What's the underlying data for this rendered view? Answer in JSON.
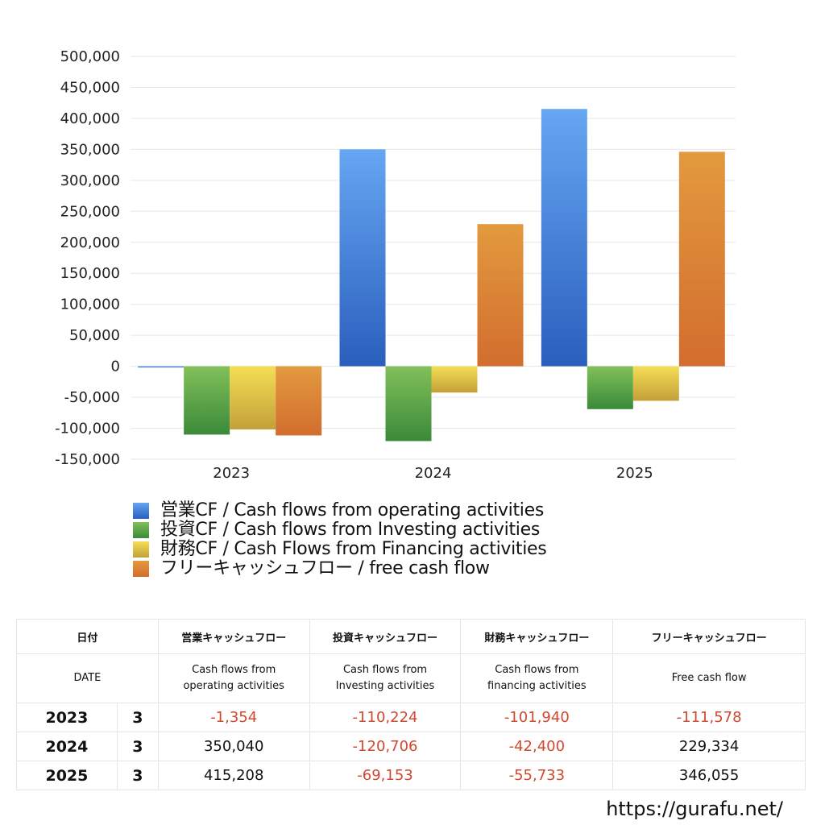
{
  "chart_data": {
    "type": "bar",
    "title": "",
    "xlabel": "",
    "ylabel": "",
    "categories": [
      "2023",
      "2024",
      "2025"
    ],
    "ylim": [
      -150000,
      500000
    ],
    "yticks": [
      500000,
      450000,
      400000,
      350000,
      300000,
      250000,
      200000,
      150000,
      100000,
      50000,
      0,
      -50000,
      -100000,
      -150000
    ],
    "ytick_labels": [
      "500,000",
      "450,000",
      "400,000",
      "350,000",
      "300,000",
      "250,000",
      "200,000",
      "150,000",
      "100,000",
      "50,000",
      "0",
      "-50,000",
      "-100,000",
      "-150,000"
    ],
    "grid": true,
    "legend_position": "bottom",
    "series": [
      {
        "name": "営業CF / Cash flows from operating activities",
        "values": [
          -1354,
          350040,
          415208
        ],
        "color_top": "#66a6f2",
        "color_bottom": "#2a5fbd"
      },
      {
        "name": "投資CF / Cash flows from Investing activities",
        "values": [
          -110224,
          -120706,
          -69153
        ],
        "color_top": "#82c05a",
        "color_bottom": "#3a8a3a"
      },
      {
        "name": "財務CF / Cash Flows from Financing activities",
        "values": [
          -101940,
          -42400,
          -55733
        ],
        "color_top": "#f4de55",
        "color_bottom": "#c3a03a"
      },
      {
        "name": "フリーキャッシュフロー / free cash flow",
        "values": [
          -111578,
          229334,
          346055
        ],
        "color_top": "#e39a3e",
        "color_bottom": "#d26d2e"
      }
    ]
  },
  "table": {
    "header_jp": [
      "日付",
      "営業キャッシュフロー",
      "投資キャッシュフロー",
      "財務キャッシュフロー",
      "フリーキャッシュフロー"
    ],
    "header_en": {
      "date": "DATE",
      "op_1": "Cash flows from",
      "op_2": "operating activities",
      "inv_1": "Cash flows from",
      "inv_2": "Investing activities",
      "fin_1": "Cash flows from",
      "fin_2": "financing activities",
      "free": "Free cash flow"
    },
    "rows": [
      {
        "year": "2023",
        "month": "3",
        "op": "-1,354",
        "inv": "-110,224",
        "fin": "-101,940",
        "free": "-111,578"
      },
      {
        "year": "2024",
        "month": "3",
        "op": "350,040",
        "inv": "-120,706",
        "fin": "-42,400",
        "free": "229,334"
      },
      {
        "year": "2025",
        "month": "3",
        "op": "415,208",
        "inv": "-69,153",
        "fin": "-55,733",
        "free": "346,055"
      }
    ]
  },
  "footer": {
    "site": "https://gurafu.net/"
  }
}
